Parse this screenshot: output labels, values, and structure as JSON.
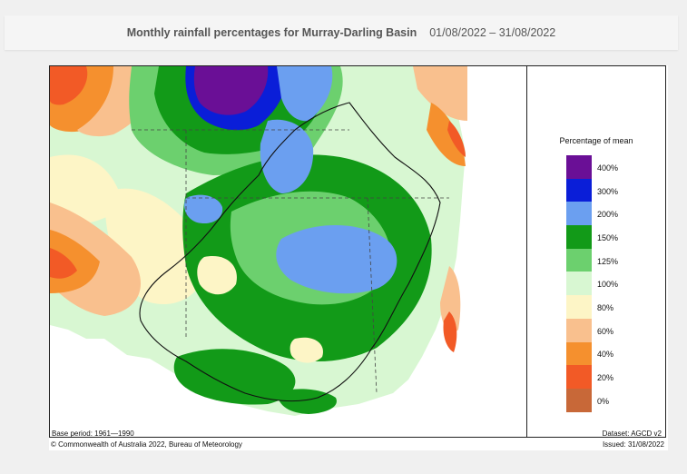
{
  "header": {
    "title": "Monthly rainfall percentages for Murray-Darling Basin",
    "date_range": "01/08/2022 – 31/08/2022"
  },
  "legend": {
    "title": "Percentage of mean",
    "items": [
      {
        "label": "400%",
        "color": "#6a0f96"
      },
      {
        "label": "300%",
        "color": "#0a1ed8"
      },
      {
        "label": "200%",
        "color": "#6b9ff0"
      },
      {
        "label": "150%",
        "color": "#129a18"
      },
      {
        "label": "125%",
        "color": "#6cd06e"
      },
      {
        "label": "100%",
        "color": "#d8f7d2"
      },
      {
        "label": "80%",
        "color": "#fdf5c6"
      },
      {
        "label": "60%",
        "color": "#f9c08e"
      },
      {
        "label": "40%",
        "color": "#f5902e"
      },
      {
        "label": "20%",
        "color": "#f25a26"
      },
      {
        "label": "0%",
        "color": "#c86838"
      }
    ]
  },
  "footer": {
    "base_period": "Base period: 1961—1990",
    "dataset": "Dataset: AGCD v2",
    "copyright": "© Commonwealth of Australia 2022, Bureau of Meteorology",
    "issued": "Issued: 31/08/2022"
  }
}
